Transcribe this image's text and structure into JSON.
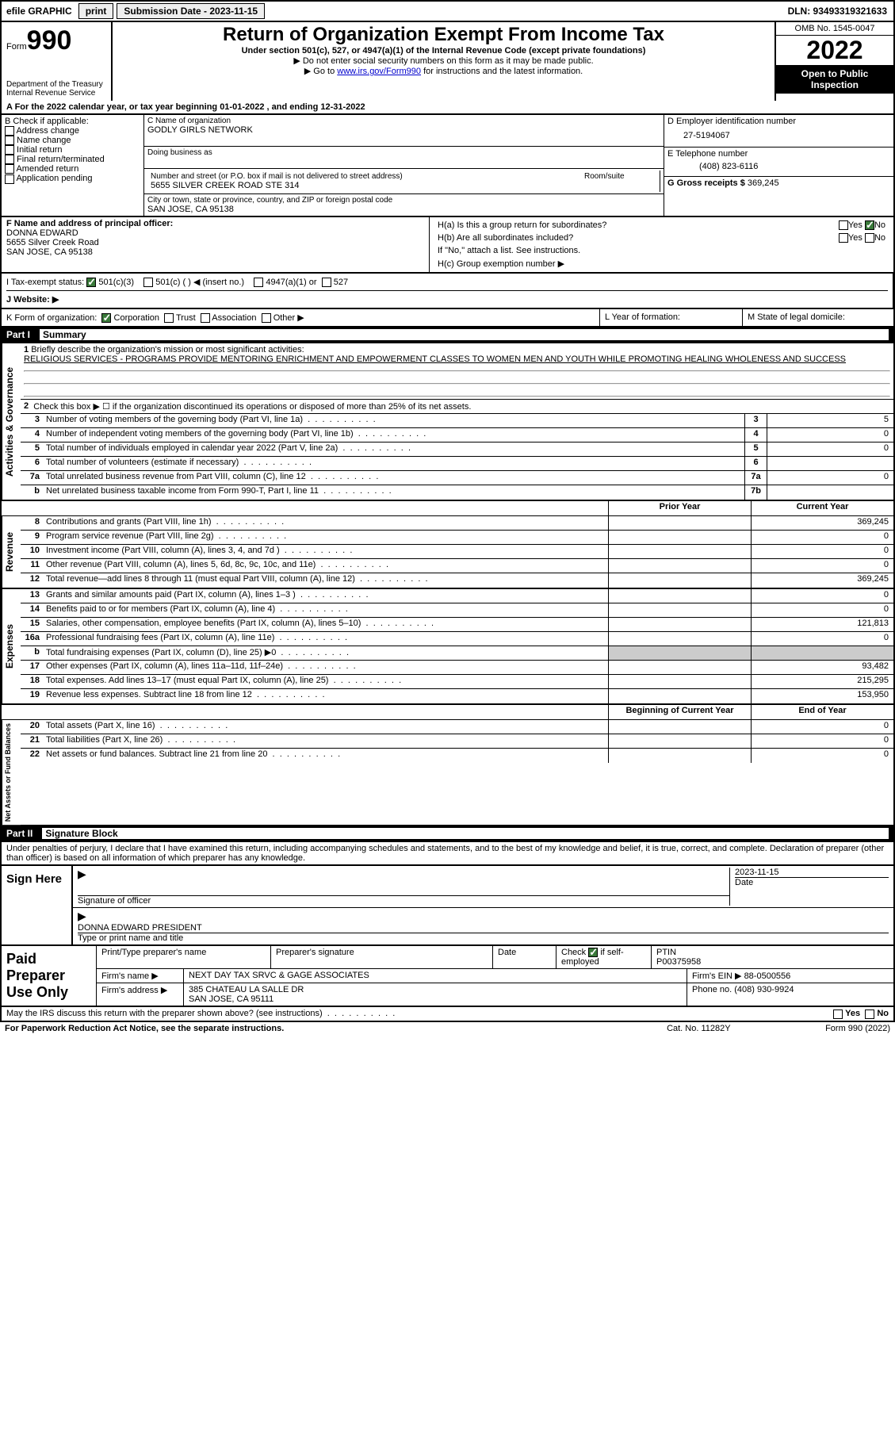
{
  "top": {
    "efile": "efile GRAPHIC",
    "print": "print",
    "subdate_lbl": "Submission Date - 2023-11-15",
    "dln_lbl": "DLN: 93493319321633"
  },
  "header": {
    "form_lbl": "Form",
    "form_no": "990",
    "dept": "Department of the Treasury",
    "irs": "Internal Revenue Service",
    "title": "Return of Organization Exempt From Income Tax",
    "sub": "Under section 501(c), 527, or 4947(a)(1) of the Internal Revenue Code (except private foundations)",
    "note1": "▶ Do not enter social security numbers on this form as it may be made public.",
    "note2_pre": "▶ Go to ",
    "note2_link": "www.irs.gov/Form990",
    "note2_post": " for instructions and the latest information.",
    "omb": "OMB No. 1545-0047",
    "year": "2022",
    "open": "Open to Public Inspection"
  },
  "line_a": "A For the 2022 calendar year, or tax year beginning 01-01-2022    , and ending 12-31-2022",
  "b": {
    "hdr": "B Check if applicable:",
    "items": [
      "Address change",
      "Name change",
      "Initial return",
      "Final return/terminated",
      "Amended return",
      "Application pending"
    ]
  },
  "c": {
    "name_lbl": "C Name of organization",
    "name": "GODLY GIRLS NETWORK",
    "dba_lbl": "Doing business as",
    "addr_lbl": "Number and street (or P.O. box if mail is not delivered to street address)",
    "room_lbl": "Room/suite",
    "addr": "5655 SILVER CREEK ROAD STE 314",
    "city_lbl": "City or town, state or province, country, and ZIP or foreign postal code",
    "city": "SAN JOSE, CA  95138"
  },
  "d": {
    "lbl": "D Employer identification number",
    "val": "27-5194067"
  },
  "e": {
    "lbl": "E Telephone number",
    "val": "(408) 823-6116"
  },
  "g": {
    "lbl": "G Gross receipts $",
    "val": "369,245"
  },
  "f": {
    "lbl": "F Name and address of principal officer:",
    "name": "DONNA EDWARD",
    "addr1": "5655 Silver Creek Road",
    "addr2": "SAN JOSE, CA  95138"
  },
  "h": {
    "a": "H(a)  Is this a group return for subordinates?",
    "b": "H(b)  Are all subordinates included?",
    "note": "If \"No,\" attach a list. See instructions.",
    "c": "H(c)  Group exemption number ▶",
    "yes": "Yes",
    "no": "No"
  },
  "i": {
    "lbl": "I    Tax-exempt status:",
    "o1": "501(c)(3)",
    "o2": "501(c) (  ) ◀ (insert no.)",
    "o3": "4947(a)(1) or",
    "o4": "527"
  },
  "j": {
    "lbl": "J    Website: ▶"
  },
  "k": {
    "lbl": "K Form of organization:",
    "o1": "Corporation",
    "o2": "Trust",
    "o3": "Association",
    "o4": "Other ▶"
  },
  "l": {
    "lbl": "L Year of formation:"
  },
  "m": {
    "lbl": "M State of legal domicile:"
  },
  "part1": {
    "num": "Part I",
    "title": "Summary"
  },
  "s1": {
    "q1": "Briefly describe the organization's mission or most significant activities:",
    "mission": "RELIGIOUS SERVICES - PROGRAMS PROVIDE MENTORING ENRICHMENT AND EMPOWERMENT CLASSES TO WOMEN MEN AND YOUTH WHILE PROMOTING HEALING WHOLENESS AND SUCCESS",
    "q2": "Check this box ▶ ☐  if the organization discontinued its operations or disposed of more than 25% of its net assets.",
    "rows": [
      {
        "n": "3",
        "t": "Number of voting members of the governing body (Part VI, line 1a)",
        "b": "3",
        "v": "5"
      },
      {
        "n": "4",
        "t": "Number of independent voting members of the governing body (Part VI, line 1b)",
        "b": "4",
        "v": "0"
      },
      {
        "n": "5",
        "t": "Total number of individuals employed in calendar year 2022 (Part V, line 2a)",
        "b": "5",
        "v": "0"
      },
      {
        "n": "6",
        "t": "Total number of volunteers (estimate if necessary)",
        "b": "6",
        "v": ""
      },
      {
        "n": "7a",
        "t": "Total unrelated business revenue from Part VIII, column (C), line 12",
        "b": "7a",
        "v": "0"
      },
      {
        "n": "b",
        "t": "Net unrelated business taxable income from Form 990-T, Part I, line 11",
        "b": "7b",
        "v": ""
      }
    ]
  },
  "colhdr": {
    "prior": "Prior Year",
    "curr": "Current Year"
  },
  "rev": {
    "lbl": "Revenue",
    "rows": [
      {
        "n": "8",
        "t": "Contributions and grants (Part VIII, line 1h)",
        "p": "",
        "c": "369,245"
      },
      {
        "n": "9",
        "t": "Program service revenue (Part VIII, line 2g)",
        "p": "",
        "c": "0"
      },
      {
        "n": "10",
        "t": "Investment income (Part VIII, column (A), lines 3, 4, and 7d )",
        "p": "",
        "c": "0"
      },
      {
        "n": "11",
        "t": "Other revenue (Part VIII, column (A), lines 5, 6d, 8c, 9c, 10c, and 11e)",
        "p": "",
        "c": "0"
      },
      {
        "n": "12",
        "t": "Total revenue—add lines 8 through 11 (must equal Part VIII, column (A), line 12)",
        "p": "",
        "c": "369,245"
      }
    ]
  },
  "exp": {
    "lbl": "Expenses",
    "rows": [
      {
        "n": "13",
        "t": "Grants and similar amounts paid (Part IX, column (A), lines 1–3 )",
        "p": "",
        "c": "0"
      },
      {
        "n": "14",
        "t": "Benefits paid to or for members (Part IX, column (A), line 4)",
        "p": "",
        "c": "0"
      },
      {
        "n": "15",
        "t": "Salaries, other compensation, employee benefits (Part IX, column (A), lines 5–10)",
        "p": "",
        "c": "121,813"
      },
      {
        "n": "16a",
        "t": "Professional fundraising fees (Part IX, column (A), line 11e)",
        "p": "",
        "c": "0"
      },
      {
        "n": "b",
        "t": "Total fundraising expenses (Part IX, column (D), line 25) ▶0",
        "p": "shade",
        "c": "shade"
      },
      {
        "n": "17",
        "t": "Other expenses (Part IX, column (A), lines 11a–11d, 11f–24e)",
        "p": "",
        "c": "93,482"
      },
      {
        "n": "18",
        "t": "Total expenses. Add lines 13–17 (must equal Part IX, column (A), line 25)",
        "p": "",
        "c": "215,295"
      },
      {
        "n": "19",
        "t": "Revenue less expenses. Subtract line 18 from line 12",
        "p": "",
        "c": "153,950"
      }
    ]
  },
  "net": {
    "lbl": "Net Assets or Fund Balances",
    "hdr_b": "Beginning of Current Year",
    "hdr_e": "End of Year",
    "rows": [
      {
        "n": "20",
        "t": "Total assets (Part X, line 16)",
        "p": "",
        "c": "0"
      },
      {
        "n": "21",
        "t": "Total liabilities (Part X, line 26)",
        "p": "",
        "c": "0"
      },
      {
        "n": "22",
        "t": "Net assets or fund balances. Subtract line 21 from line 20",
        "p": "",
        "c": "0"
      }
    ]
  },
  "part2": {
    "num": "Part II",
    "title": "Signature Block"
  },
  "pen": "Under penalties of perjury, I declare that I have examined this return, including accompanying schedules and statements, and to the best of my knowledge and belief, it is true, correct, and complete. Declaration of preparer (other than officer) is based on all information of which preparer has any knowledge.",
  "sign": {
    "here": "Sign Here",
    "sig_lbl": "Signature of officer",
    "date_lbl": "Date",
    "date": "2023-11-15",
    "name": "DONNA EDWARD  PRESIDENT",
    "name_lbl": "Type or print name and title"
  },
  "paid": {
    "lbl": "Paid Preparer Use Only",
    "r1": {
      "a": "Print/Type preparer's name",
      "b": "Preparer's signature",
      "c": "Date",
      "d_pre": "Check",
      "d_post": "if self-employed",
      "e": "PTIN",
      "e2": "P00375958"
    },
    "r2": {
      "a": "Firm's name    ▶",
      "b": "NEXT DAY TAX SRVC & GAGE ASSOCIATES",
      "c": "Firm's EIN ▶",
      "d": "88-0500556"
    },
    "r3": {
      "a": "Firm's address ▶",
      "b": "385 CHATEAU LA SALLE DR",
      "c": "SAN JOSE, CA  95111",
      "d": "Phone no.",
      "e": "(408) 930-9924"
    }
  },
  "may": {
    "txt": "May the IRS discuss this return with the preparer shown above? (see instructions)",
    "yes": "Yes",
    "no": "No"
  },
  "foot": {
    "a": "For Paperwork Reduction Act Notice, see the separate instructions.",
    "b": "Cat. No. 11282Y",
    "c": "Form 990 (2022)"
  }
}
